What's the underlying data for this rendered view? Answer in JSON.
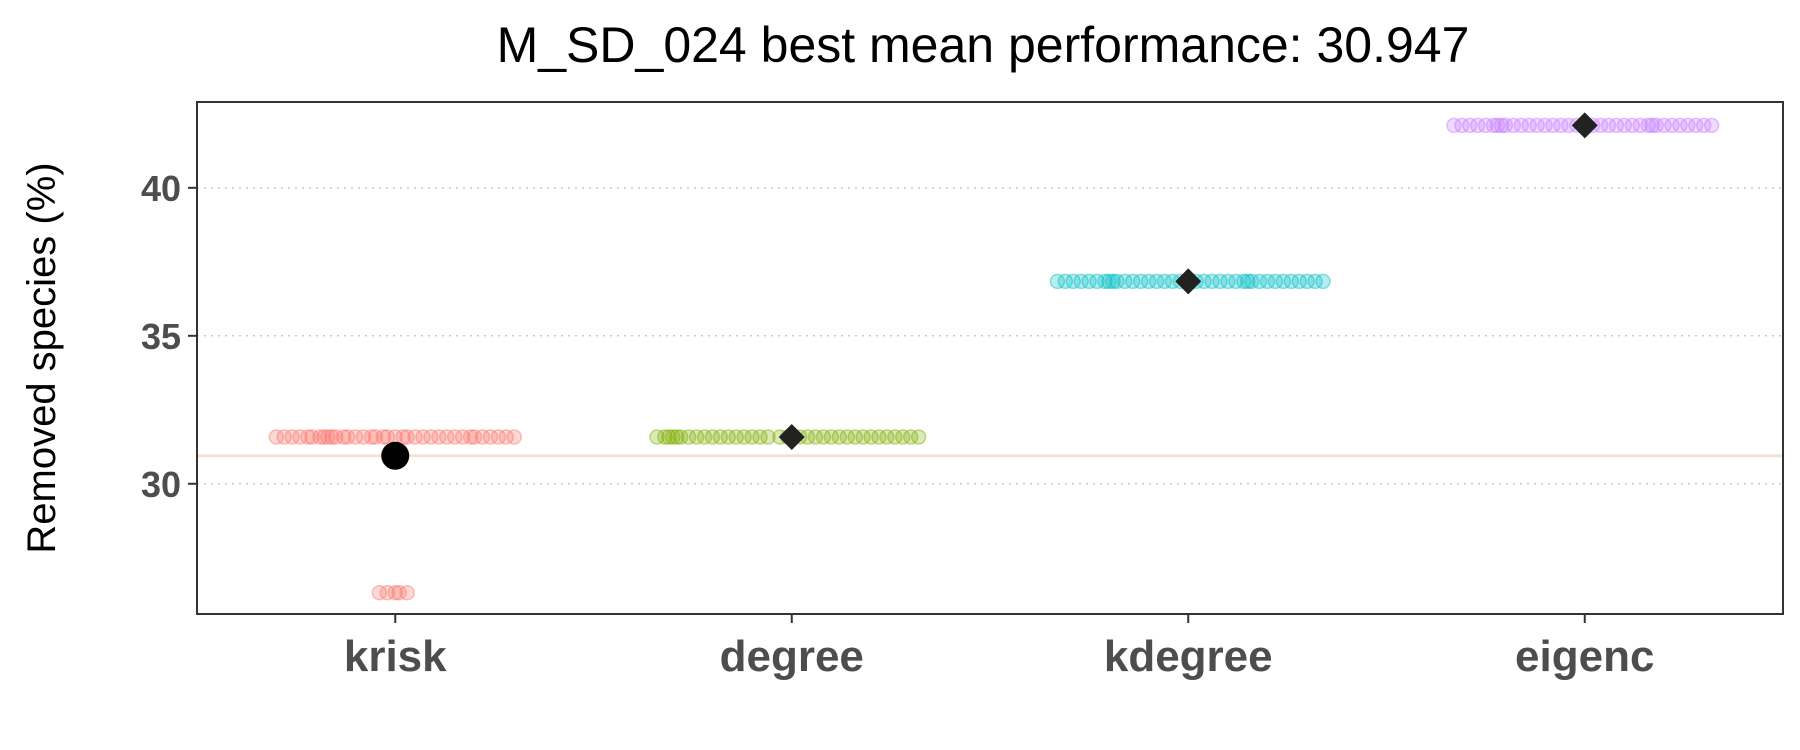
{
  "chart_data": {
    "type": "scatter",
    "title": "M_SD_024 best mean performance: 30.947",
    "ylabel": "Removed species (%)",
    "xlabel": "",
    "categories": [
      "krisk",
      "degree",
      "kdegree",
      "eigenc"
    ],
    "ylim": [
      25.6,
      42.9
    ],
    "yticks": [
      30,
      35,
      40
    ],
    "grid": "horizontal-dotted",
    "reference_line": {
      "y": 30.947,
      "color": "#f5e1d2"
    },
    "best_mean": {
      "category": "krisk",
      "y": 30.947
    },
    "series": [
      {
        "category": "krisk",
        "color": "#f8766d",
        "mean": 30.947,
        "points": [
          {
            "y": 31.58,
            "offsets": [
              -0.3,
              -0.28,
              -0.26,
              -0.24,
              -0.22,
              -0.21,
              -0.19,
              -0.18,
              -0.17,
              -0.16,
              -0.15,
              -0.13,
              -0.12,
              -0.1,
              -0.08,
              -0.06,
              -0.05,
              -0.03,
              -0.02,
              0.0,
              0.02,
              0.03,
              0.05,
              0.07,
              0.09,
              0.11,
              0.13,
              0.15,
              0.17,
              0.19,
              0.2,
              0.22,
              0.24,
              0.26,
              0.28,
              0.3
            ]
          },
          {
            "y": 26.32,
            "offsets": [
              -0.04,
              -0.02,
              0.0,
              0.01,
              0.03
            ]
          }
        ]
      },
      {
        "category": "degree",
        "color": "#7cae00",
        "mean": 31.58,
        "points": [
          {
            "y": 31.58,
            "offsets": [
              -0.34,
              -0.32,
              -0.31,
              -0.3,
              -0.29,
              -0.28,
              -0.26,
              -0.24,
              -0.22,
              -0.2,
              -0.18,
              -0.16,
              -0.14,
              -0.12,
              -0.1,
              -0.08,
              -0.06,
              -0.03,
              -0.01,
              0.02,
              0.04,
              0.06,
              0.08,
              0.1,
              0.12,
              0.14,
              0.16,
              0.18,
              0.2,
              0.22,
              0.24,
              0.26,
              0.28,
              0.3,
              0.32
            ]
          }
        ]
      },
      {
        "category": "kdegree",
        "color": "#00bfc4",
        "mean": 36.84,
        "points": [
          {
            "y": 36.84,
            "offsets": [
              -0.33,
              -0.31,
              -0.29,
              -0.27,
              -0.25,
              -0.23,
              -0.21,
              -0.2,
              -0.19,
              -0.18,
              -0.16,
              -0.14,
              -0.12,
              -0.1,
              -0.08,
              -0.06,
              -0.04,
              -0.02,
              0.0,
              0.02,
              0.04,
              0.06,
              0.08,
              0.1,
              0.12,
              0.14,
              0.15,
              0.16,
              0.18,
              0.2,
              0.22,
              0.24,
              0.26,
              0.28,
              0.3,
              0.32,
              0.34
            ]
          }
        ]
      },
      {
        "category": "eigenc",
        "color": "#c77cff",
        "mean": 42.11,
        "points": [
          {
            "y": 42.11,
            "offsets": [
              -0.33,
              -0.31,
              -0.29,
              -0.27,
              -0.25,
              -0.23,
              -0.22,
              -0.21,
              -0.2,
              -0.18,
              -0.16,
              -0.14,
              -0.12,
              -0.1,
              -0.08,
              -0.06,
              -0.04,
              -0.02,
              0.0,
              0.02,
              0.04,
              0.06,
              0.08,
              0.1,
              0.12,
              0.14,
              0.16,
              0.17,
              0.18,
              0.2,
              0.22,
              0.24,
              0.26,
              0.28,
              0.3,
              0.32
            ]
          }
        ]
      }
    ]
  }
}
